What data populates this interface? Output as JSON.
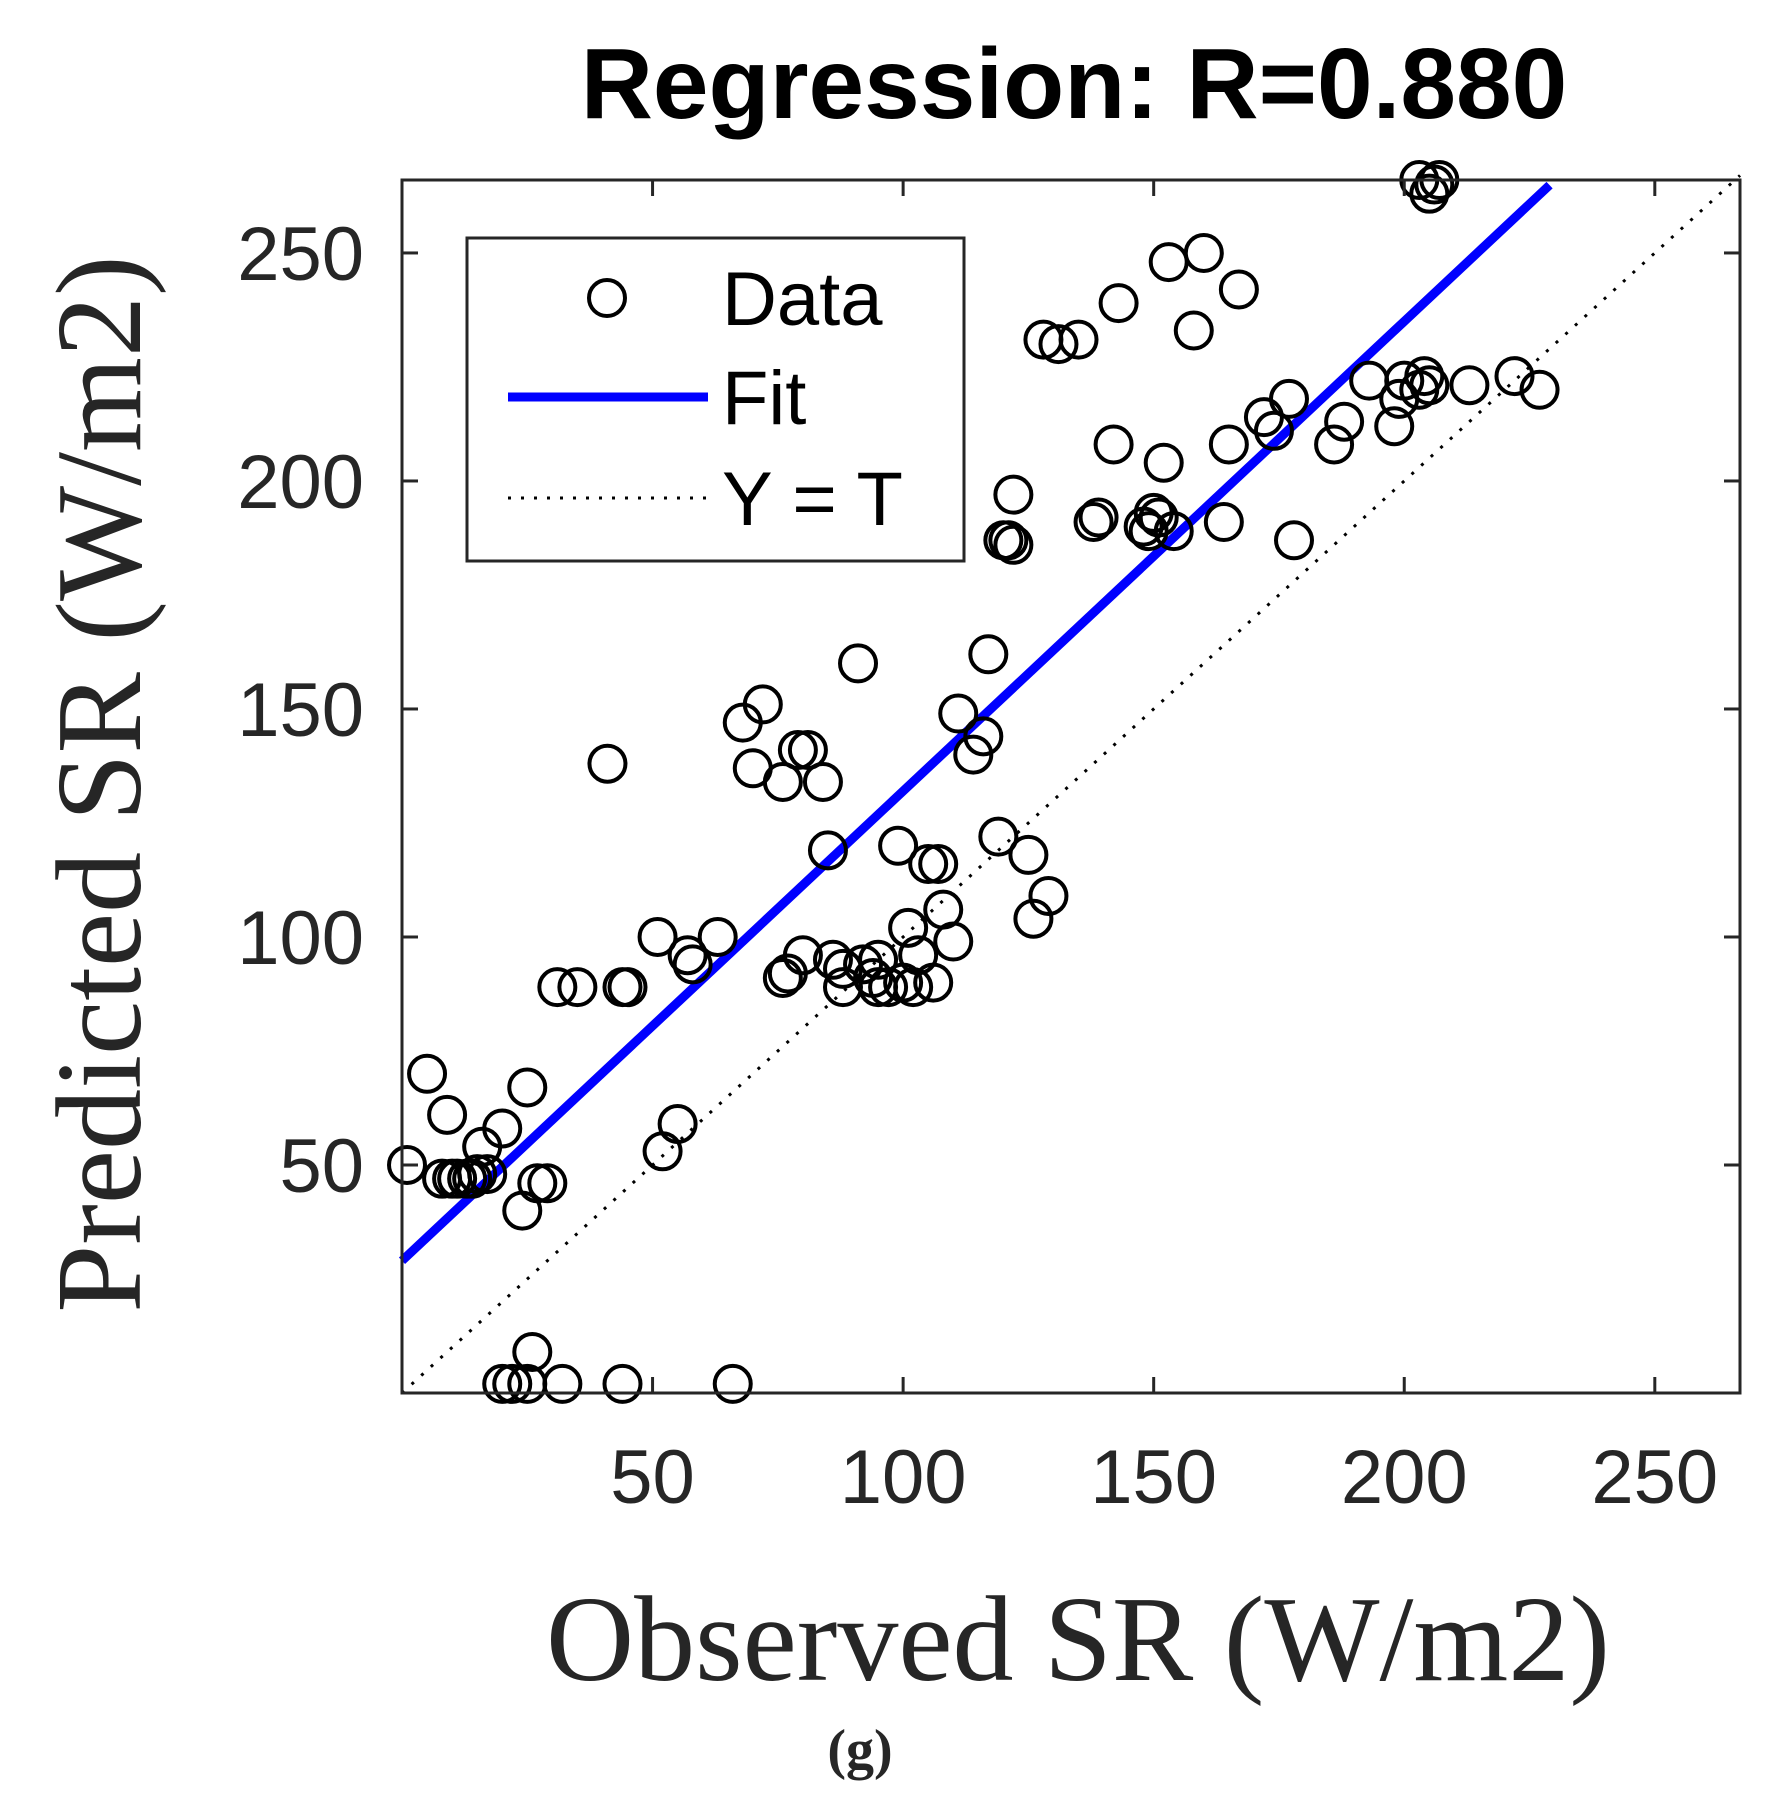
{
  "chart_data": {
    "type": "scatter",
    "title": "Regression: R=0.880",
    "xlabel": "Observed SR (W/m2)",
    "ylabel": "Predicted SR (W/m2)",
    "caption": "(g)",
    "xlim": [
      0,
      267
    ],
    "ylim": [
      0,
      266
    ],
    "xticks": [
      50,
      100,
      150,
      200,
      250
    ],
    "yticks": [
      50,
      100,
      150,
      200,
      250
    ],
    "grid": false,
    "legend_position": "top-left",
    "legend": [
      {
        "key": "data",
        "label": "Data"
      },
      {
        "key": "fit",
        "label": "Fit"
      },
      {
        "key": "yt",
        "label": "Y = T"
      }
    ],
    "fit_line": {
      "slope": 1.03,
      "intercept": 29,
      "x_range": [
        0,
        229
      ],
      "color": "#0000ff"
    },
    "identity_line": {
      "x_range": [
        0,
        267
      ],
      "color": "#000000"
    },
    "series": [
      {
        "name": "Data",
        "marker": "circle-open",
        "x": [
          1,
          5,
          8,
          9,
          10,
          11,
          13,
          14,
          15,
          16,
          17,
          20,
          24,
          25,
          26,
          27,
          29,
          31,
          35,
          41,
          44,
          45,
          52,
          51,
          55,
          57,
          58,
          63,
          68,
          70,
          72,
          76,
          79,
          81,
          80,
          84,
          86,
          85,
          88,
          91,
          95,
          97,
          99,
          101,
          102,
          103,
          106,
          105,
          107,
          108,
          110,
          111,
          114,
          116,
          117,
          119,
          120,
          121,
          122,
          122,
          125,
          128,
          129,
          126,
          131,
          135,
          138,
          139,
          143,
          142,
          149,
          151,
          153,
          152,
          148,
          150,
          154,
          158,
          160,
          164,
          167,
          165,
          172,
          174,
          178,
          177,
          186,
          188,
          193,
          198,
          199,
          200,
          203,
          204,
          205,
          213,
          222,
          227,
          76,
          77,
          88,
          92,
          94,
          95,
          100,
          20,
          22,
          25,
          32,
          44,
          66,
          203,
          205,
          206,
          207
        ],
        "y": [
          50,
          70,
          47,
          61,
          47,
          47,
          47,
          47,
          48,
          54,
          48,
          58,
          40,
          67,
          9,
          46,
          46,
          89,
          89,
          138,
          89,
          89,
          53,
          100,
          59,
          96,
          94,
          100,
          147,
          137,
          151,
          134,
          141,
          141,
          96,
          134,
          95,
          119,
          89,
          160,
          95,
          89,
          120,
          102,
          89,
          96,
          90,
          116,
          116,
          106,
          99,
          149,
          140,
          144,
          162,
          122,
          187,
          187,
          197,
          186,
          118,
          231,
          109,
          104,
          230,
          231,
          191,
          192,
          239,
          208,
          189,
          192,
          248,
          204,
          190,
          193,
          189,
          233,
          250,
          191,
          242,
          208,
          214,
          211,
          187,
          218,
          208,
          213,
          222,
          212,
          218,
          222,
          220,
          223,
          221,
          221,
          223,
          220,
          91,
          92,
          93,
          94,
          91,
          89,
          90,
          2,
          2,
          2,
          2,
          2,
          2,
          266,
          263,
          265,
          266
        ]
      }
    ]
  }
}
